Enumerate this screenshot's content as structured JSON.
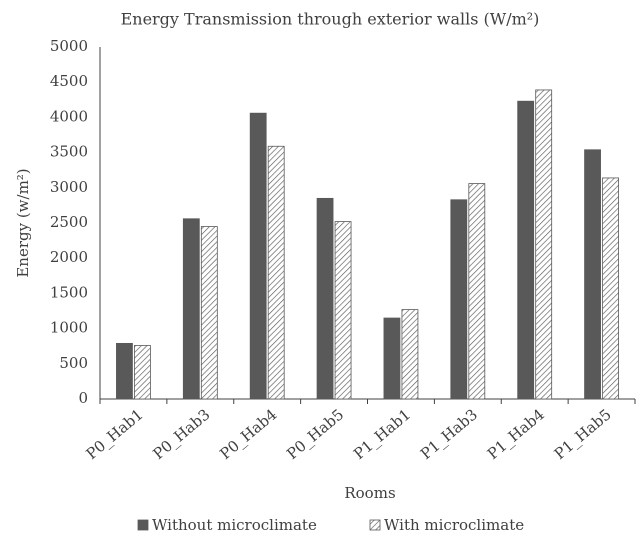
{
  "chart_data": {
    "type": "bar",
    "title": "Energy Transmission through exterior walls (W/m²)",
    "x_label": "Rooms",
    "y_label": "Energy (w/m²)",
    "categories": [
      "P0_Hab1",
      "P0_Hab3",
      "P0_Hab4",
      "P0_Hab5",
      "P1_Hab1",
      "P1_Hab3",
      "P1_Hab4",
      "P1_Hab5"
    ],
    "series": [
      {
        "name": "Without microclimate",
        "color": "#595959",
        "pattern": "solid",
        "values": [
          790,
          2560,
          4060,
          2850,
          1150,
          2830,
          4230,
          3540
        ]
      },
      {
        "name": "With microclimate",
        "color": "#595959",
        "pattern": "hatch",
        "values": [
          760,
          2450,
          3590,
          2520,
          1270,
          3060,
          4390,
          3140
        ]
      }
    ],
    "ylim": [
      0,
      5000
    ],
    "yticks": [
      0,
      500,
      1000,
      1500,
      2000,
      2500,
      3000,
      3500,
      4000,
      4500,
      5000
    ],
    "grid": false,
    "legend": "bottom"
  }
}
